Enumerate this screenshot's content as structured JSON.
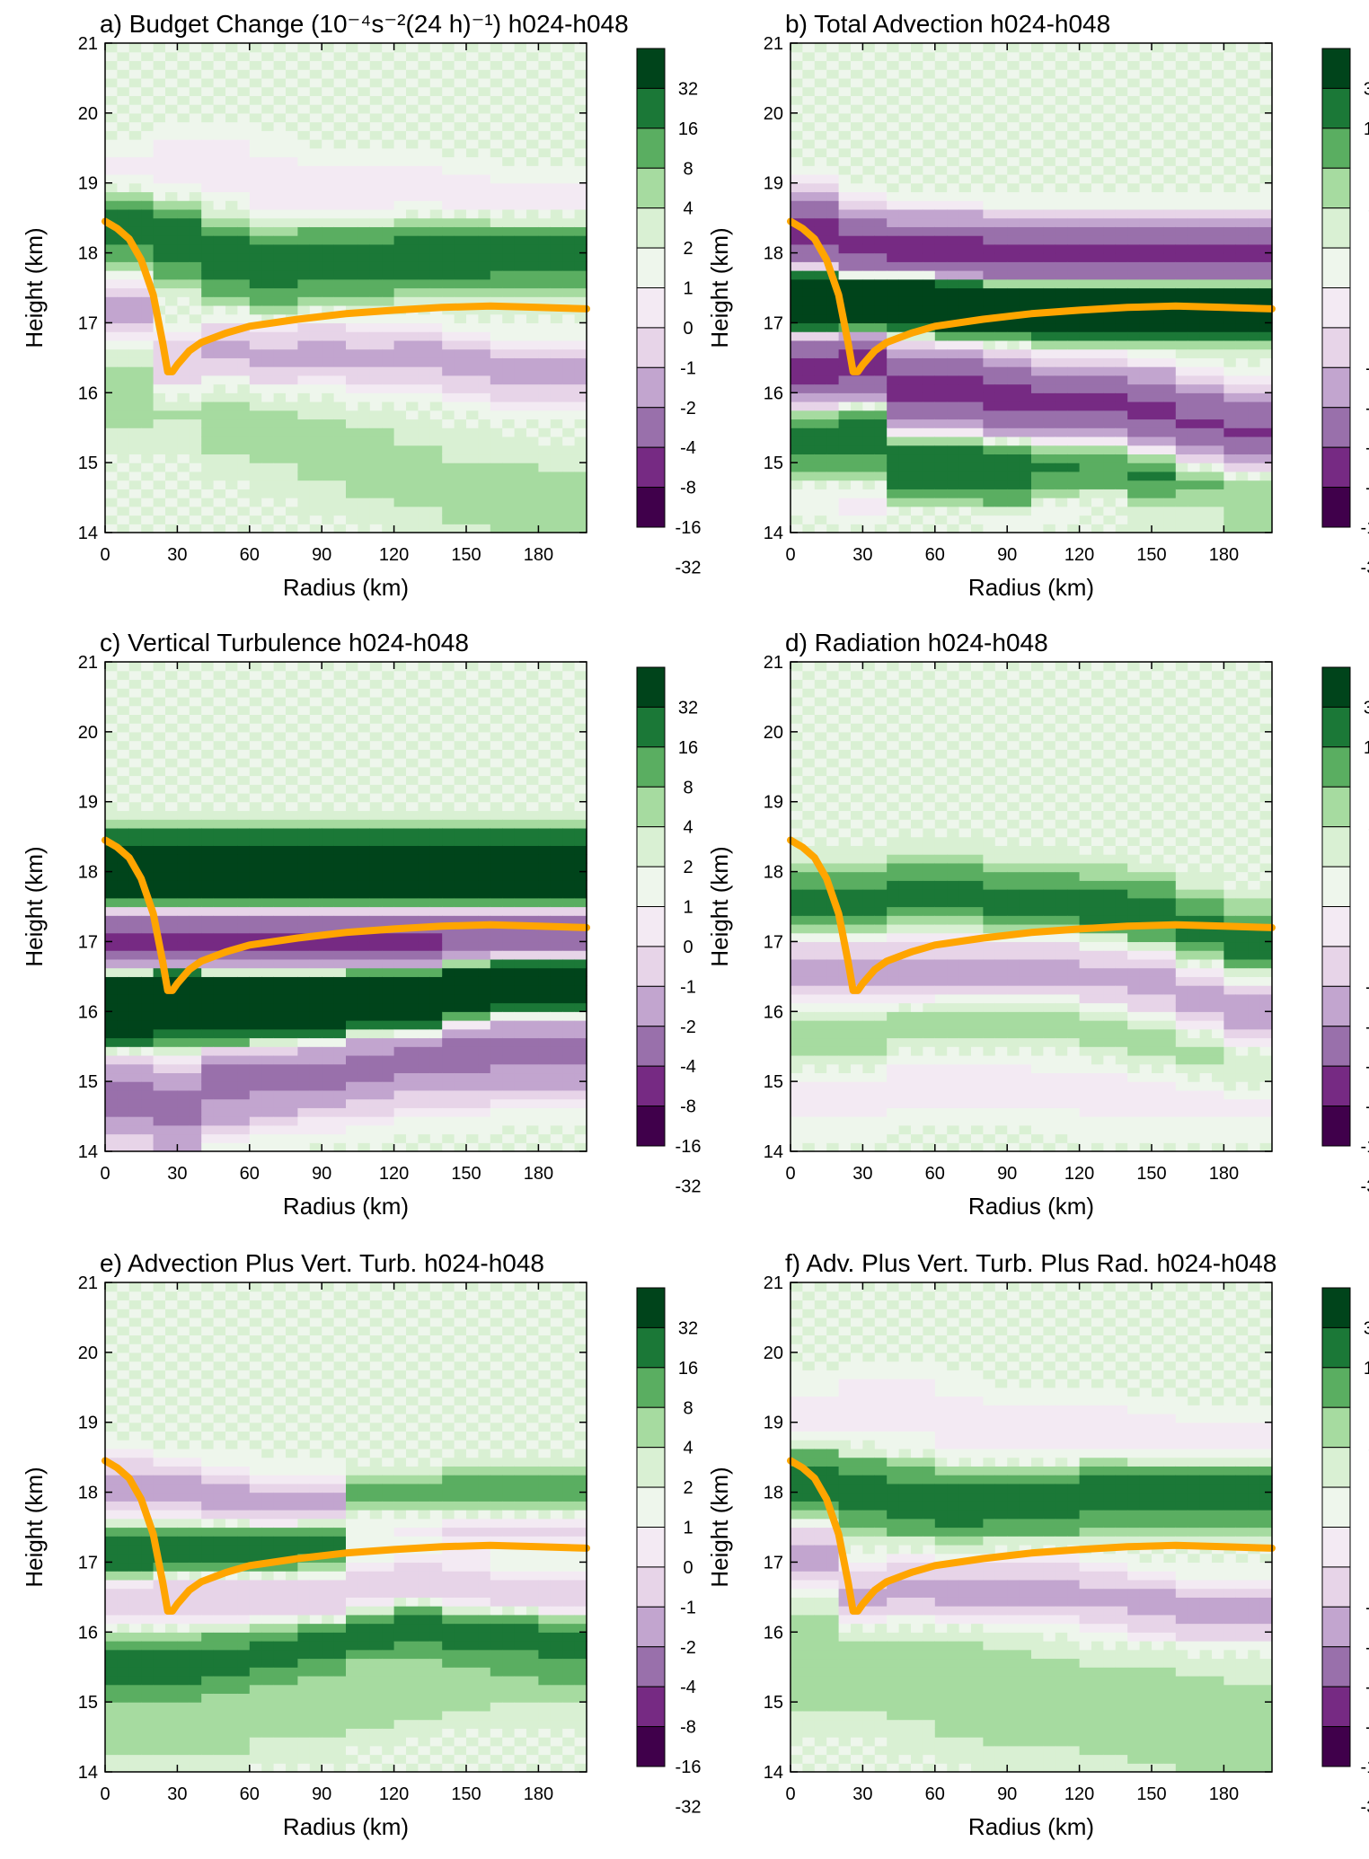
{
  "figure": {
    "colors": {
      "levels_fill": [
        "#40004b",
        "#762a83",
        "#9970ab",
        "#c2a5cf",
        "#e7d4e8",
        "#f3eaf3",
        "#eef6ec",
        "#d9f0d3",
        "#a6dba0",
        "#5aae61",
        "#1b7837",
        "#00441b"
      ],
      "track": "#ffa500",
      "frame": "#000000"
    },
    "colorbar_labels": [
      "32",
      "16",
      "8",
      "4",
      "2",
      "1",
      "0",
      "-1",
      "-2",
      "-4",
      "-8",
      "-16",
      "-32"
    ]
  },
  "chart_data": [
    {
      "id": "a",
      "type": "heatmap",
      "title": "a) Budget Change (10⁻⁴s⁻²(24 h)⁻¹) h024-h048",
      "xlabel": "Radius (km)",
      "ylabel": "Height (km)",
      "xlim": [
        0,
        200
      ],
      "ylim": [
        14,
        21
      ],
      "xticks": [
        "0",
        "30",
        "60",
        "90",
        "120",
        "150",
        "180"
      ],
      "yticks": [
        "14",
        "15",
        "16",
        "17",
        "18",
        "19",
        "20",
        "21"
      ],
      "levels": [
        -32,
        -16,
        -8,
        -4,
        -2,
        -1,
        0,
        1,
        2,
        4,
        8,
        16,
        32
      ],
      "bands": [
        {
          "base": [
            18.4,
            18.2,
            17.9,
            17.8,
            17.9,
            17.9,
            18.0,
            18.0,
            18.0,
            18.0
          ],
          "width": 0.5,
          "value": 6
        },
        {
          "base": [
            17.2,
            16.4,
            16.6,
            16.5,
            16.6,
            16.5,
            16.5,
            16.4,
            16.3,
            16.3
          ],
          "width": 0.4,
          "value": -5
        },
        {
          "base": [
            16.0,
            16.0,
            15.6,
            15.4,
            15.2,
            15.0,
            14.8,
            14.6,
            14.5,
            14.4
          ],
          "width": 0.7,
          "value": 1.5
        },
        {
          "base": [
            19.0,
            19.2,
            19.2,
            19.0,
            18.8,
            18.8,
            18.8,
            18.7,
            18.6,
            18.6
          ],
          "width": 0.5,
          "value": -2
        }
      ],
      "tropopause": {
        "r": [
          0,
          5,
          10,
          15,
          20,
          24,
          26,
          28,
          30,
          35,
          40,
          50,
          60,
          80,
          100,
          120,
          140,
          160,
          180,
          200
        ],
        "z": [
          18.45,
          18.35,
          18.2,
          17.9,
          17.4,
          16.7,
          16.3,
          16.3,
          16.4,
          16.6,
          16.72,
          16.85,
          16.95,
          17.05,
          17.13,
          17.18,
          17.22,
          17.24,
          17.22,
          17.2
        ]
      }
    },
    {
      "id": "b",
      "type": "heatmap",
      "title": "b) Total Advection h024-h048",
      "xlabel": "Radius (km)",
      "ylabel": "Height (km)",
      "xlim": [
        0,
        200
      ],
      "ylim": [
        14,
        21
      ],
      "xticks": [
        "0",
        "30",
        "60",
        "90",
        "120",
        "150",
        "180"
      ],
      "yticks": [
        "14",
        "15",
        "16",
        "17",
        "18",
        "19",
        "20",
        "21"
      ],
      "levels": [
        -32,
        -16,
        -8,
        -4,
        -2,
        -1,
        0,
        1,
        2,
        4,
        8,
        16,
        32
      ],
      "bands": [
        {
          "base": [
            18.3,
            18.1,
            18.0,
            18.0,
            17.9,
            17.9,
            17.9,
            17.9,
            17.9,
            17.9
          ],
          "width": 0.45,
          "value": -20
        },
        {
          "base": [
            17.3,
            17.3,
            17.4,
            17.3,
            17.3,
            17.3,
            17.3,
            17.3,
            17.3,
            17.3
          ],
          "width": 0.4,
          "value": 20
        },
        {
          "base": [
            16.3,
            16.4,
            16.0,
            16.0,
            15.9,
            15.8,
            15.8,
            15.7,
            15.5,
            15.4
          ],
          "width": 0.5,
          "value": -20
        },
        {
          "base": [
            15.5,
            15.5,
            15.0,
            15.0,
            15.0,
            15.2,
            15.2,
            15.0,
            15.0,
            14.9
          ],
          "width": 0.7,
          "value": 6
        },
        {
          "base": [
            14.6,
            14.5,
            14.3,
            14.3,
            14.2,
            14.4,
            14.5,
            14.5,
            14.5,
            14.5
          ],
          "width": 0.3,
          "value": -2
        }
      ],
      "tropopause": {
        "r": [
          0,
          5,
          10,
          15,
          20,
          24,
          26,
          28,
          30,
          35,
          40,
          50,
          60,
          80,
          100,
          120,
          140,
          160,
          180,
          200
        ],
        "z": [
          18.45,
          18.35,
          18.2,
          17.9,
          17.4,
          16.7,
          16.3,
          16.3,
          16.4,
          16.6,
          16.72,
          16.85,
          16.95,
          17.05,
          17.13,
          17.18,
          17.22,
          17.24,
          17.22,
          17.2
        ]
      }
    },
    {
      "id": "c",
      "type": "heatmap",
      "title": "c) Vertical Turbulence h024-h048",
      "xlabel": "Radius (km)",
      "ylabel": "Height (km)",
      "xlim": [
        0,
        200
      ],
      "ylim": [
        14,
        21
      ],
      "xticks": [
        "0",
        "30",
        "60",
        "90",
        "120",
        "150",
        "180"
      ],
      "yticks": [
        "14",
        "15",
        "16",
        "17",
        "18",
        "19",
        "20",
        "21"
      ],
      "levels": [
        -32,
        -16,
        -8,
        -4,
        -2,
        -1,
        0,
        1,
        2,
        4,
        8,
        16,
        32
      ],
      "bands": [
        {
          "base": [
            18.0,
            18.0,
            18.0,
            18.0,
            18.0,
            18.0,
            18.0,
            18.0,
            18.0,
            18.0
          ],
          "width": 0.45,
          "value": 20
        },
        {
          "base": [
            17.0,
            17.0,
            17.0,
            17.0,
            17.0,
            17.0,
            17.0,
            17.0,
            17.0,
            17.0
          ],
          "width": 0.45,
          "value": -20
        },
        {
          "base": [
            16.1,
            16.2,
            16.1,
            16.1,
            16.1,
            16.2,
            16.2,
            16.4,
            16.5,
            16.5
          ],
          "width": 0.5,
          "value": 20
        },
        {
          "base": [
            14.8,
            14.6,
            15.0,
            15.1,
            15.2,
            15.3,
            15.4,
            15.4,
            15.5,
            15.5
          ],
          "width": 0.6,
          "value": -10
        }
      ],
      "tropopause": {
        "r": [
          0,
          5,
          10,
          15,
          20,
          24,
          26,
          28,
          30,
          35,
          40,
          50,
          60,
          80,
          100,
          120,
          140,
          160,
          180,
          200
        ],
        "z": [
          18.45,
          18.35,
          18.2,
          17.9,
          17.4,
          16.7,
          16.3,
          16.3,
          16.4,
          16.6,
          16.72,
          16.85,
          16.95,
          17.05,
          17.13,
          17.18,
          17.22,
          17.24,
          17.22,
          17.2
        ]
      }
    },
    {
      "id": "d",
      "type": "heatmap",
      "title": "d) Radiation h024-h048",
      "xlabel": "Radius (km)",
      "ylabel": "Height (km)",
      "xlim": [
        0,
        200
      ],
      "ylim": [
        14,
        21
      ],
      "xticks": [
        "0",
        "30",
        "60",
        "90",
        "120",
        "150",
        "180"
      ],
      "yticks": [
        "14",
        "15",
        "16",
        "17",
        "18",
        "19",
        "20",
        "21"
      ],
      "levels": [
        -32,
        -16,
        -8,
        -4,
        -2,
        -1,
        0,
        1,
        2,
        4,
        8,
        16,
        32
      ],
      "bands": [
        {
          "base": [
            17.6,
            17.6,
            17.7,
            17.7,
            17.6,
            17.6,
            17.5,
            17.4,
            17.2,
            17.0
          ],
          "width": 0.45,
          "value": 5
        },
        {
          "base": [
            16.6,
            16.6,
            16.6,
            16.6,
            16.6,
            16.6,
            16.5,
            16.4,
            16.2,
            16.0
          ],
          "width": 0.45,
          "value": -5
        },
        {
          "base": [
            15.6,
            15.6,
            15.8,
            15.9,
            15.9,
            15.9,
            15.8,
            15.6,
            15.4,
            15.2
          ],
          "width": 0.4,
          "value": 2
        },
        {
          "base": [
            14.8,
            14.8,
            15.0,
            15.0,
            15.0,
            14.9,
            14.8,
            14.8,
            14.8,
            14.8
          ],
          "width": 0.5,
          "value": -1.5
        }
      ],
      "tropopause": {
        "r": [
          0,
          5,
          10,
          15,
          20,
          24,
          26,
          28,
          30,
          35,
          40,
          50,
          60,
          80,
          100,
          120,
          140,
          160,
          180,
          200
        ],
        "z": [
          18.45,
          18.35,
          18.2,
          17.9,
          17.4,
          16.7,
          16.3,
          16.3,
          16.4,
          16.6,
          16.72,
          16.85,
          16.95,
          17.05,
          17.13,
          17.18,
          17.22,
          17.24,
          17.22,
          17.2
        ]
      }
    },
    {
      "id": "e",
      "type": "heatmap",
      "title": "e) Advection Plus Vert. Turb. h024-h048",
      "xlabel": "Radius (km)",
      "ylabel": "Height (km)",
      "xlim": [
        0,
        200
      ],
      "ylim": [
        14,
        21
      ],
      "xticks": [
        "0",
        "30",
        "60",
        "90",
        "120",
        "150",
        "180"
      ],
      "yticks": [
        "14",
        "15",
        "16",
        "17",
        "18",
        "19",
        "20",
        "21"
      ],
      "levels": [
        -32,
        -16,
        -8,
        -4,
        -2,
        -1,
        0,
        1,
        2,
        4,
        8,
        16,
        32
      ],
      "bands": [
        {
          "base": [
            18.1,
            18.0,
            17.9,
            17.8,
            17.8,
            17.8,
            17.8,
            17.7,
            17.7,
            17.7
          ],
          "width": 0.4,
          "value": -5
        },
        {
          "base": [
            17.1,
            17.2,
            17.2,
            17.2,
            17.3,
            17.9,
            17.9,
            17.9,
            17.9,
            17.9
          ],
          "width": 0.35,
          "value": 7
        },
        {
          "base": [
            16.5,
            16.5,
            16.5,
            16.5,
            16.5,
            16.6,
            16.7,
            16.6,
            16.5,
            16.5
          ],
          "width": 0.35,
          "value": -4
        },
        {
          "base": [
            15.5,
            15.5,
            15.6,
            15.7,
            15.8,
            16.0,
            16.1,
            16.0,
            16.0,
            15.9
          ],
          "width": 0.4,
          "value": 5
        },
        {
          "base": [
            14.6,
            14.6,
            14.6,
            14.8,
            14.8,
            15.0,
            15.1,
            15.2,
            15.3,
            15.3
          ],
          "width": 0.5,
          "value": 1.5
        }
      ],
      "tropopause": {
        "r": [
          0,
          5,
          10,
          15,
          20,
          24,
          26,
          28,
          30,
          35,
          40,
          50,
          60,
          80,
          100,
          120,
          140,
          160,
          180,
          200
        ],
        "z": [
          18.45,
          18.35,
          18.2,
          17.9,
          17.4,
          16.7,
          16.3,
          16.3,
          16.4,
          16.6,
          16.72,
          16.85,
          16.95,
          17.05,
          17.13,
          17.18,
          17.22,
          17.24,
          17.22,
          17.2
        ]
      }
    },
    {
      "id": "f",
      "type": "heatmap",
      "title": "f) Adv. Plus Vert. Turb. Plus Rad. h024-h048",
      "xlabel": "Radius (km)",
      "ylabel": "Height (km)",
      "xlim": [
        0,
        200
      ],
      "ylim": [
        14,
        21
      ],
      "xticks": [
        "0",
        "30",
        "60",
        "90",
        "120",
        "150",
        "180"
      ],
      "yticks": [
        "14",
        "15",
        "16",
        "17",
        "18",
        "19",
        "20",
        "21"
      ],
      "levels": [
        -32,
        -16,
        -8,
        -4,
        -2,
        -1,
        0,
        1,
        2,
        4,
        8,
        16,
        32
      ],
      "bands": [
        {
          "base": [
            18.2,
            18.0,
            17.9,
            17.8,
            17.9,
            17.9,
            18.0,
            18.0,
            18.0,
            18.0
          ],
          "width": 0.45,
          "value": 6
        },
        {
          "base": [
            17.1,
            16.5,
            16.6,
            16.6,
            16.6,
            16.6,
            16.5,
            16.4,
            16.3,
            16.3
          ],
          "width": 0.4,
          "value": -5
        },
        {
          "base": [
            15.6,
            15.6,
            15.4,
            15.2,
            15.1,
            15.0,
            14.9,
            14.8,
            14.7,
            14.6
          ],
          "width": 0.8,
          "value": 2
        },
        {
          "base": [
            19.0,
            19.2,
            19.2,
            19.0,
            18.8,
            18.8,
            18.8,
            18.7,
            18.6,
            18.6
          ],
          "width": 0.5,
          "value": -2
        }
      ],
      "tropopause": {
        "r": [
          0,
          5,
          10,
          15,
          20,
          24,
          26,
          28,
          30,
          35,
          40,
          50,
          60,
          80,
          100,
          120,
          140,
          160,
          180,
          200
        ],
        "z": [
          18.45,
          18.35,
          18.2,
          17.9,
          17.4,
          16.7,
          16.3,
          16.3,
          16.4,
          16.6,
          16.72,
          16.85,
          16.95,
          17.05,
          17.13,
          17.18,
          17.22,
          17.24,
          17.22,
          17.2
        ]
      }
    }
  ]
}
